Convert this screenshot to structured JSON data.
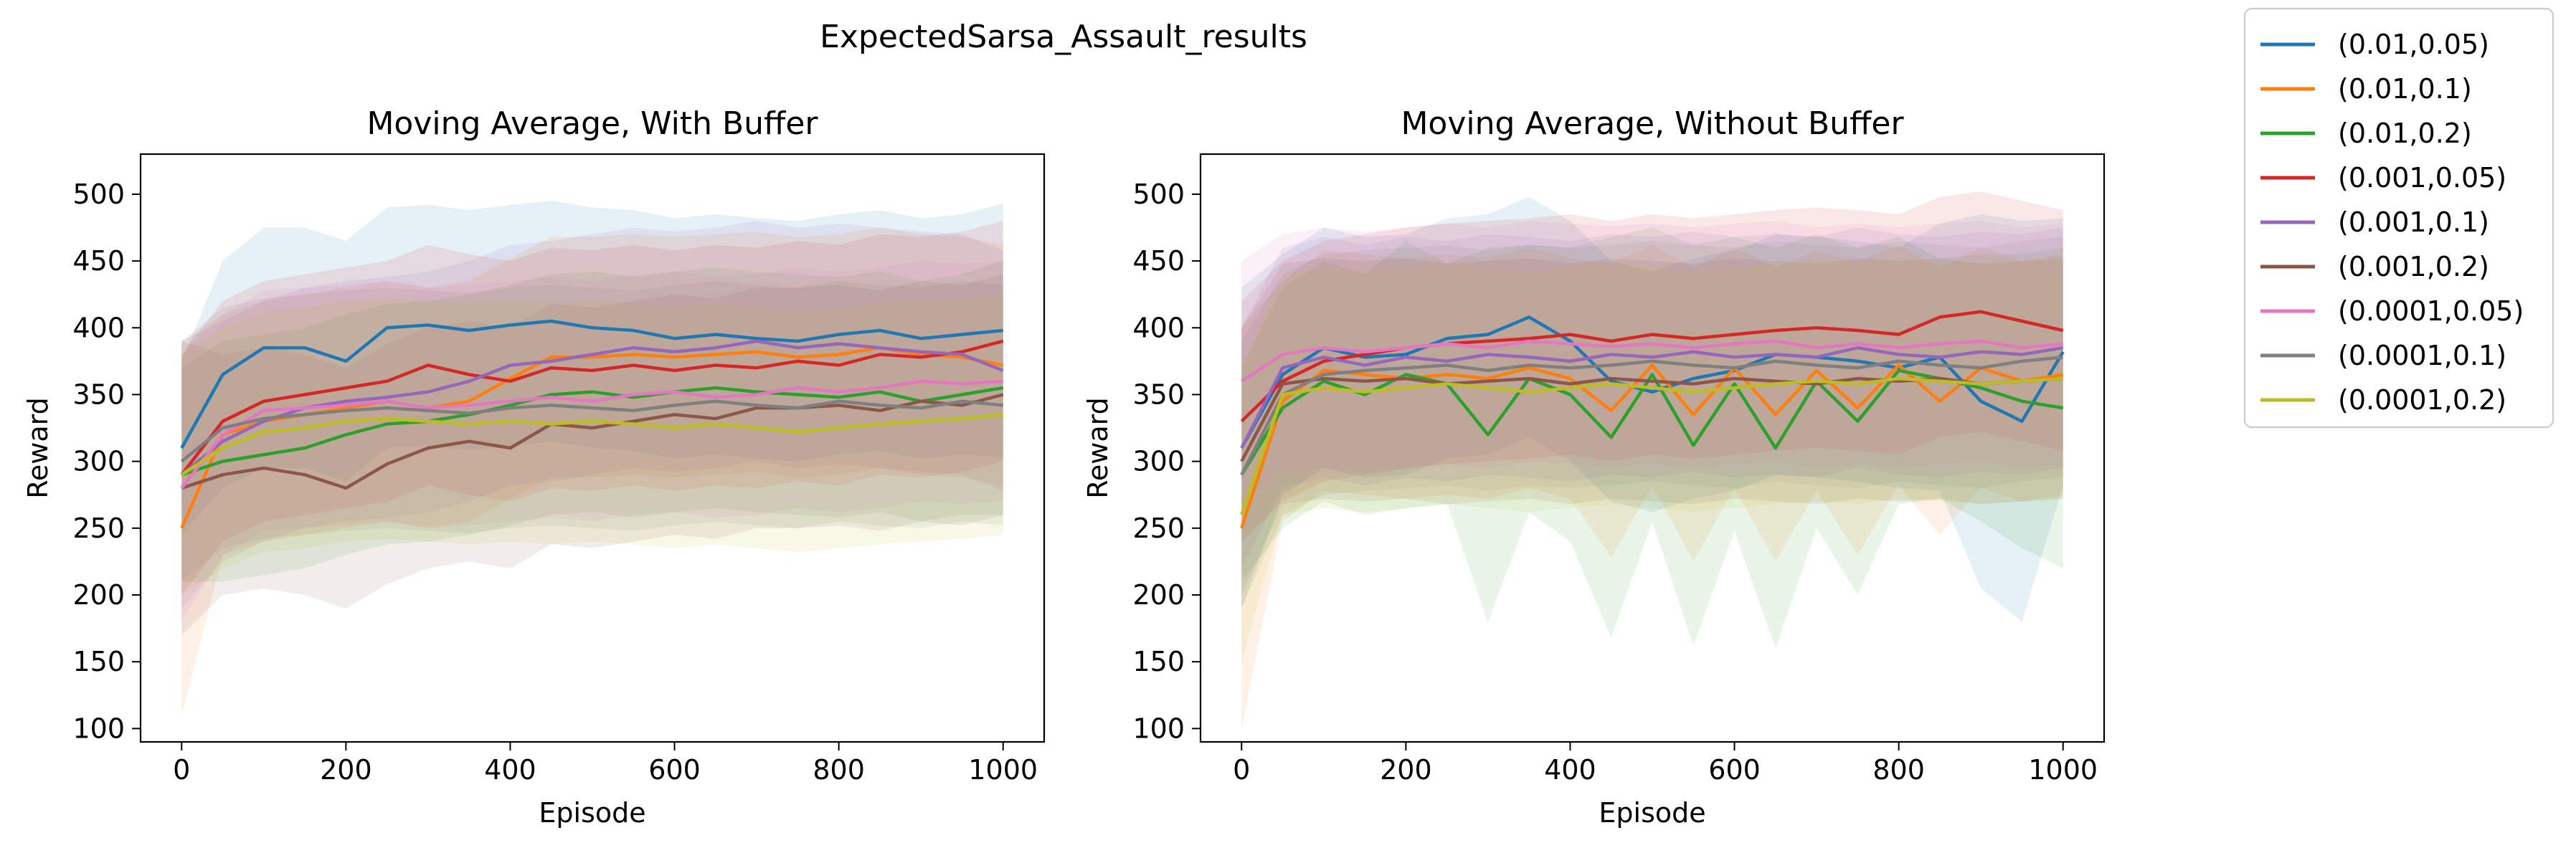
{
  "figure_title": "ExpectedSarsa_Assault_results",
  "legend": {
    "placement": "outside-top-right",
    "entries": [
      {
        "label": "(0.01,0.05)",
        "color": "#1f77b4"
      },
      {
        "label": "(0.01,0.1)",
        "color": "#ff7f0e"
      },
      {
        "label": "(0.01,0.2)",
        "color": "#2ca02c"
      },
      {
        "label": "(0.001,0.05)",
        "color": "#d62728"
      },
      {
        "label": "(0.001,0.1)",
        "color": "#9467bd"
      },
      {
        "label": "(0.001,0.2)",
        "color": "#8c564b"
      },
      {
        "label": "(0.0001,0.05)",
        "color": "#e377c2"
      },
      {
        "label": "(0.0001,0.1)",
        "color": "#7f7f7f"
      },
      {
        "label": "(0.0001,0.2)",
        "color": "#bcbd22"
      }
    ]
  },
  "chart_data": [
    {
      "type": "line",
      "title": "Moving Average, With Buffer",
      "xlabel": "Episode",
      "ylabel": "Reward",
      "xlim": [
        -50,
        1050
      ],
      "ylim": [
        90,
        530
      ],
      "xticks": [
        0,
        200,
        400,
        600,
        800,
        1000
      ],
      "yticks": [
        100,
        150,
        200,
        250,
        300,
        350,
        400,
        450,
        500
      ],
      "grid": false,
      "shaded_band": "mean ± std",
      "x": [
        0,
        50,
        100,
        150,
        200,
        250,
        300,
        350,
        400,
        450,
        500,
        550,
        600,
        650,
        700,
        750,
        800,
        850,
        900,
        950,
        1000
      ],
      "series": [
        {
          "name": "(0.01,0.05)",
          "color": "#1f77b4",
          "values": [
            310,
            365,
            385,
            385,
            375,
            400,
            402,
            398,
            402,
            405,
            400,
            398,
            392,
            395,
            392,
            390,
            395,
            398,
            392,
            395,
            398
          ],
          "band": [
            65,
            85,
            90,
            90,
            90,
            90,
            90,
            90,
            90,
            90,
            90,
            90,
            90,
            90,
            90,
            90,
            90,
            90,
            90,
            90,
            95
          ]
        },
        {
          "name": "(0.01,0.1)",
          "color": "#ff7f0e",
          "values": [
            250,
            320,
            330,
            335,
            340,
            345,
            340,
            345,
            362,
            378,
            378,
            380,
            378,
            380,
            382,
            378,
            380,
            385,
            380,
            378,
            372
          ],
          "band": [
            140,
            90,
            90,
            90,
            90,
            90,
            90,
            90,
            90,
            90,
            90,
            90,
            90,
            90,
            90,
            90,
            90,
            90,
            90,
            90,
            90
          ]
        },
        {
          "name": "(0.01,0.2)",
          "color": "#2ca02c",
          "values": [
            290,
            300,
            305,
            310,
            320,
            328,
            330,
            335,
            342,
            350,
            352,
            348,
            352,
            355,
            352,
            350,
            348,
            352,
            345,
            350,
            355
          ],
          "band": [
            80,
            90,
            90,
            90,
            90,
            90,
            90,
            90,
            90,
            90,
            90,
            90,
            90,
            90,
            90,
            90,
            90,
            90,
            90,
            90,
            95
          ]
        },
        {
          "name": "(0.001,0.05)",
          "color": "#d62728",
          "values": [
            290,
            330,
            345,
            350,
            355,
            360,
            372,
            365,
            360,
            370,
            368,
            372,
            368,
            372,
            370,
            375,
            372,
            380,
            378,
            382,
            390
          ],
          "band": [
            90,
            90,
            90,
            90,
            90,
            90,
            90,
            90,
            90,
            90,
            90,
            90,
            90,
            90,
            90,
            90,
            90,
            90,
            90,
            90,
            90
          ]
        },
        {
          "name": "(0.001,0.1)",
          "color": "#9467bd",
          "values": [
            290,
            315,
            330,
            340,
            345,
            348,
            352,
            360,
            372,
            375,
            380,
            385,
            382,
            385,
            390,
            385,
            388,
            385,
            382,
            380,
            368
          ],
          "band": [
            100,
            90,
            90,
            90,
            90,
            90,
            90,
            90,
            90,
            90,
            90,
            90,
            90,
            90,
            90,
            90,
            90,
            90,
            90,
            90,
            90
          ]
        },
        {
          "name": "(0.001,0.2)",
          "color": "#8c564b",
          "values": [
            280,
            290,
            295,
            290,
            280,
            298,
            310,
            315,
            310,
            328,
            325,
            330,
            335,
            332,
            340,
            340,
            342,
            338,
            345,
            342,
            350
          ],
          "band": [
            110,
            90,
            90,
            90,
            90,
            90,
            90,
            90,
            90,
            90,
            90,
            90,
            90,
            90,
            90,
            90,
            90,
            90,
            90,
            90,
            90
          ]
        },
        {
          "name": "(0.0001,0.05)",
          "color": "#e377c2",
          "values": [
            280,
            320,
            338,
            340,
            342,
            345,
            340,
            342,
            345,
            348,
            345,
            350,
            352,
            348,
            350,
            355,
            352,
            355,
            360,
            358,
            360
          ],
          "band": [
            100,
            90,
            90,
            90,
            90,
            90,
            90,
            90,
            90,
            90,
            90,
            90,
            90,
            90,
            90,
            90,
            90,
            90,
            90,
            90,
            90
          ]
        },
        {
          "name": "(0.0001,0.1)",
          "color": "#7f7f7f",
          "values": [
            300,
            325,
            332,
            335,
            338,
            340,
            338,
            336,
            340,
            342,
            340,
            338,
            342,
            345,
            342,
            340,
            345,
            342,
            340,
            345,
            342
          ],
          "band": [
            90,
            90,
            90,
            90,
            90,
            90,
            90,
            90,
            90,
            90,
            90,
            90,
            90,
            90,
            90,
            90,
            90,
            90,
            90,
            90,
            90
          ]
        },
        {
          "name": "(0.0001,0.2)",
          "color": "#bcbd22",
          "values": [
            290,
            310,
            322,
            325,
            330,
            332,
            330,
            328,
            330,
            328,
            330,
            328,
            325,
            328,
            325,
            322,
            325,
            328,
            330,
            332,
            335
          ],
          "band": [
            90,
            90,
            90,
            90,
            90,
            90,
            90,
            90,
            90,
            90,
            90,
            90,
            90,
            90,
            90,
            90,
            90,
            90,
            90,
            90,
            90
          ]
        }
      ]
    },
    {
      "type": "line",
      "title": "Moving Average, Without Buffer",
      "xlabel": "Episode",
      "ylabel": "Reward",
      "xlim": [
        -50,
        1050
      ],
      "ylim": [
        90,
        530
      ],
      "xticks": [
        0,
        200,
        400,
        600,
        800,
        1000
      ],
      "yticks": [
        100,
        150,
        200,
        250,
        300,
        350,
        400,
        450,
        500
      ],
      "grid": false,
      "shaded_band": "mean ± std",
      "x": [
        0,
        50,
        100,
        150,
        200,
        250,
        300,
        350,
        400,
        450,
        500,
        550,
        600,
        650,
        700,
        750,
        800,
        850,
        900,
        950,
        1000
      ],
      "series": [
        {
          "name": "(0.01,0.05)",
          "color": "#1f77b4",
          "values": [
            310,
            365,
            385,
            378,
            380,
            392,
            395,
            408,
            390,
            360,
            352,
            362,
            368,
            380,
            378,
            375,
            370,
            378,
            345,
            330,
            382
          ],
          "band": [
            120,
            90,
            90,
            90,
            90,
            90,
            90,
            90,
            90,
            90,
            90,
            90,
            90,
            90,
            90,
            90,
            90,
            100,
            140,
            150,
            100
          ]
        },
        {
          "name": "(0.01,0.1)",
          "color": "#ff7f0e",
          "values": [
            250,
            345,
            368,
            365,
            362,
            365,
            362,
            370,
            362,
            338,
            372,
            335,
            370,
            335,
            368,
            340,
            372,
            345,
            370,
            360,
            365
          ],
          "band": [
            150,
            90,
            90,
            90,
            90,
            90,
            90,
            90,
            90,
            110,
            90,
            110,
            90,
            110,
            90,
            110,
            90,
            100,
            90,
            90,
            90
          ]
        },
        {
          "name": "(0.01,0.2)",
          "color": "#2ca02c",
          "values": [
            290,
            340,
            360,
            350,
            365,
            358,
            320,
            362,
            350,
            318,
            365,
            312,
            358,
            310,
            360,
            330,
            368,
            362,
            355,
            345,
            340
          ],
          "band": [
            80,
            90,
            90,
            90,
            100,
            90,
            140,
            100,
            110,
            150,
            110,
            150,
            110,
            150,
            110,
            130,
            100,
            90,
            100,
            110,
            120
          ]
        },
        {
          "name": "(0.001,0.05)",
          "color": "#d62728",
          "values": [
            330,
            360,
            375,
            380,
            385,
            388,
            390,
            392,
            395,
            390,
            395,
            392,
            395,
            398,
            400,
            398,
            395,
            408,
            412,
            405,
            398
          ],
          "band": [
            90,
            90,
            90,
            90,
            90,
            90,
            90,
            90,
            90,
            90,
            90,
            90,
            90,
            90,
            90,
            90,
            90,
            90,
            90,
            90,
            90
          ]
        },
        {
          "name": "(0.001,0.1)",
          "color": "#9467bd",
          "values": [
            310,
            370,
            378,
            372,
            378,
            375,
            380,
            378,
            375,
            380,
            378,
            382,
            378,
            380,
            378,
            385,
            380,
            378,
            382,
            380,
            385
          ],
          "band": [
            90,
            90,
            90,
            90,
            90,
            90,
            90,
            90,
            90,
            90,
            90,
            90,
            90,
            90,
            90,
            90,
            90,
            90,
            90,
            90,
            90
          ]
        },
        {
          "name": "(0.001,0.2)",
          "color": "#8c564b",
          "values": [
            300,
            358,
            362,
            360,
            362,
            358,
            360,
            362,
            358,
            362,
            360,
            358,
            362,
            360,
            358,
            362,
            360,
            362,
            358,
            360,
            362
          ],
          "band": [
            100,
            90,
            90,
            90,
            90,
            90,
            90,
            90,
            90,
            90,
            90,
            90,
            90,
            90,
            90,
            90,
            90,
            90,
            90,
            90,
            90
          ]
        },
        {
          "name": "(0.0001,0.05)",
          "color": "#e377c2",
          "values": [
            360,
            380,
            385,
            382,
            385,
            388,
            385,
            390,
            388,
            386,
            388,
            385,
            388,
            390,
            385,
            388,
            385,
            388,
            390,
            385,
            388
          ],
          "band": [
            90,
            90,
            90,
            90,
            90,
            90,
            90,
            90,
            90,
            90,
            90,
            90,
            90,
            90,
            90,
            90,
            90,
            90,
            90,
            90,
            90
          ]
        },
        {
          "name": "(0.0001,0.1)",
          "color": "#7f7f7f",
          "values": [
            290,
            350,
            365,
            368,
            370,
            372,
            368,
            372,
            370,
            372,
            375,
            372,
            370,
            375,
            372,
            370,
            375,
            372,
            370,
            375,
            378
          ],
          "band": [
            100,
            90,
            90,
            90,
            90,
            90,
            90,
            90,
            90,
            90,
            90,
            90,
            90,
            90,
            90,
            90,
            90,
            90,
            90,
            90,
            90
          ]
        },
        {
          "name": "(0.0001,0.2)",
          "color": "#bcbd22",
          "values": [
            260,
            350,
            355,
            352,
            355,
            358,
            355,
            352,
            355,
            358,
            355,
            352,
            355,
            358,
            360,
            358,
            362,
            360,
            358,
            360,
            362
          ],
          "band": [
            110,
            90,
            90,
            90,
            90,
            90,
            90,
            90,
            90,
            90,
            90,
            90,
            90,
            90,
            90,
            90,
            90,
            90,
            90,
            90,
            90
          ]
        }
      ]
    }
  ]
}
